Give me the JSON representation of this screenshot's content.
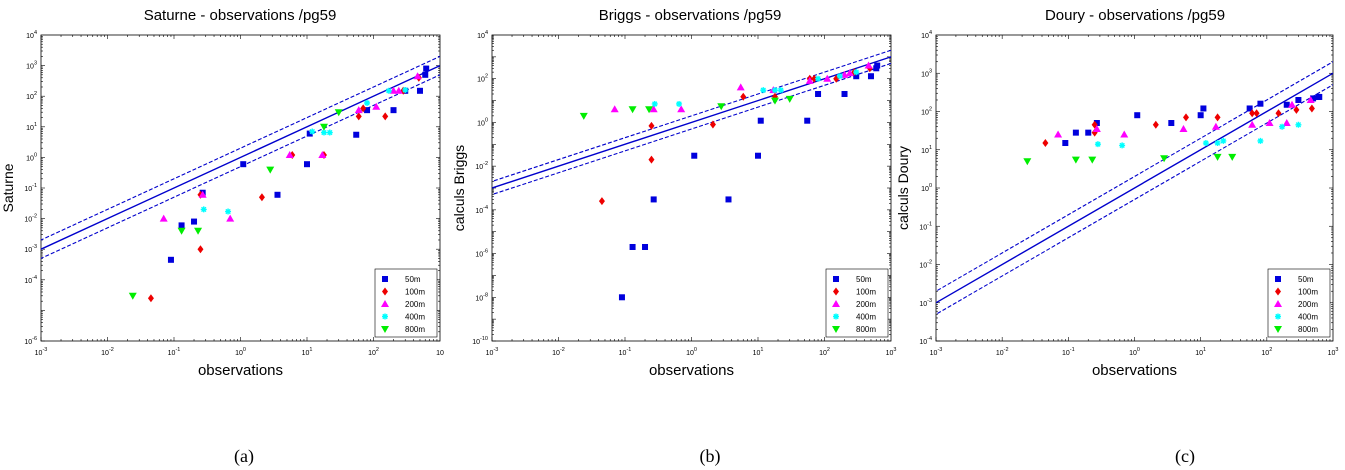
{
  "captions": [
    "(a)",
    "(b)",
    "(c)"
  ],
  "colors": {
    "50m": "#0000dd",
    "100m": "#ee0000",
    "200m": "#ff00ff",
    "400m": "#00ffff",
    "800m": "#00ee00",
    "fit_line": "#0000cc"
  },
  "chart_data": [
    {
      "type": "scatter",
      "title": "Saturne - observations /pg59",
      "xlabel": "observations",
      "ylabel": "Saturne",
      "xscale": "log",
      "yscale": "log",
      "xlim": [
        0.001,
        1000
      ],
      "ylim": [
        1e-06,
        10000
      ],
      "xticks": [
        {
          "value": 0.001,
          "label_base": "10",
          "label_exp": "-3"
        },
        {
          "value": 0.01,
          "label_base": "10",
          "label_exp": "-2"
        },
        {
          "value": 0.1,
          "label_base": "10",
          "label_exp": "-1"
        },
        {
          "value": 1,
          "label_base": "10",
          "label_exp": "0"
        },
        {
          "value": 10,
          "label_base": "10",
          "label_exp": "1"
        },
        {
          "value": 100,
          "label_base": "10",
          "label_exp": "2"
        },
        {
          "value": 1000,
          "label_base": "10",
          "label_exp": ""
        }
      ],
      "yticks": [
        {
          "value": 1e-06,
          "label_base": "10",
          "label_exp": "-6"
        },
        {
          "value": 0.0001,
          "label_base": "10",
          "label_exp": "-4"
        },
        {
          "value": 0.001,
          "label_base": "10",
          "label_exp": "-3"
        },
        {
          "value": 0.01,
          "label_base": "10",
          "label_exp": "-2"
        },
        {
          "value": 0.1,
          "label_base": "10",
          "label_exp": "-1"
        },
        {
          "value": 1,
          "label_base": "10",
          "label_exp": "0"
        },
        {
          "value": 10,
          "label_base": "10",
          "label_exp": "1"
        },
        {
          "value": 100,
          "label_base": "10",
          "label_exp": "2"
        },
        {
          "value": 1000,
          "label_base": "10",
          "label_exp": "3"
        },
        {
          "value": 10000,
          "label_base": "10",
          "label_exp": "4"
        }
      ],
      "legend_position": "bottom-right",
      "lines": [
        {
          "style": "solid",
          "factor": 1
        },
        {
          "style": "dashed",
          "factor": 2
        },
        {
          "style": "dashed",
          "factor": 0.5
        }
      ],
      "series": [
        {
          "name": "50m",
          "marker": "square",
          "points": [
            [
              0.09,
              0.00045
            ],
            [
              0.13,
              0.006
            ],
            [
              0.2,
              0.008
            ],
            [
              0.27,
              0.07
            ],
            [
              1.1,
              0.6
            ],
            [
              3.6,
              0.06
            ],
            [
              10,
              0.6
            ],
            [
              11,
              6
            ],
            [
              55,
              5.5
            ],
            [
              80,
              35
            ],
            [
              200,
              35
            ],
            [
              300,
              150
            ],
            [
              500,
              150
            ],
            [
              600,
              500
            ],
            [
              620,
              800
            ]
          ]
        },
        {
          "name": "100m",
          "marker": "diamond",
          "points": [
            [
              0.045,
              2.5e-05
            ],
            [
              0.25,
              0.001
            ],
            [
              0.25,
              0.06
            ],
            [
              2.1,
              0.05
            ],
            [
              6,
              1.2
            ],
            [
              18,
              1.2
            ],
            [
              60,
              22
            ],
            [
              70,
              40
            ],
            [
              150,
              22
            ],
            [
              280,
              150
            ],
            [
              480,
              400
            ]
          ]
        },
        {
          "name": "200m",
          "marker": "triangle-up",
          "points": [
            [
              0.07,
              0.01
            ],
            [
              0.27,
              0.06
            ],
            [
              0.7,
              0.01
            ],
            [
              5.5,
              1.2
            ],
            [
              17,
              1.2
            ],
            [
              60,
              35
            ],
            [
              110,
              45
            ],
            [
              200,
              150
            ],
            [
              240,
              150
            ],
            [
              460,
              450
            ]
          ]
        },
        {
          "name": "400m",
          "marker": "star",
          "points": [
            [
              0.28,
              0.02
            ],
            [
              0.65,
              0.017
            ],
            [
              12,
              7
            ],
            [
              18,
              6.5
            ],
            [
              22,
              6.5
            ],
            [
              80,
              60
            ],
            [
              170,
              150
            ],
            [
              300,
              160
            ]
          ]
        },
        {
          "name": "800m",
          "marker": "triangle-down",
          "points": [
            [
              0.024,
              3e-05
            ],
            [
              0.13,
              0.004
            ],
            [
              0.23,
              0.004
            ],
            [
              2.8,
              0.4
            ],
            [
              18,
              10
            ],
            [
              30,
              30
            ]
          ]
        }
      ]
    },
    {
      "type": "scatter",
      "title": "Briggs - observations /pg59",
      "xlabel": "observations",
      "ylabel": "calculs Briggs",
      "xscale": "log",
      "yscale": "log",
      "xlim": [
        0.001,
        1000
      ],
      "ylim": [
        1e-10,
        10000
      ],
      "xticks": [
        {
          "value": 0.001,
          "label_base": "10",
          "label_exp": "-3"
        },
        {
          "value": 0.01,
          "label_base": "10",
          "label_exp": "-2"
        },
        {
          "value": 0.1,
          "label_base": "10",
          "label_exp": "-1"
        },
        {
          "value": 1,
          "label_base": "10",
          "label_exp": "0"
        },
        {
          "value": 10,
          "label_base": "10",
          "label_exp": "1"
        },
        {
          "value": 100,
          "label_base": "10",
          "label_exp": "2"
        },
        {
          "value": 1000,
          "label_base": "10",
          "label_exp": "3"
        }
      ],
      "yticks": [
        {
          "value": 1e-10,
          "label_base": "10",
          "label_exp": "-10"
        },
        {
          "value": 1e-08,
          "label_base": "10",
          "label_exp": "-8"
        },
        {
          "value": 1e-06,
          "label_base": "10",
          "label_exp": "-6"
        },
        {
          "value": 0.0001,
          "label_base": "10",
          "label_exp": "-4"
        },
        {
          "value": 0.01,
          "label_base": "10",
          "label_exp": "-2"
        },
        {
          "value": 1,
          "label_base": "10",
          "label_exp": "0"
        },
        {
          "value": 100,
          "label_base": "10",
          "label_exp": "2"
        },
        {
          "value": 10000,
          "label_base": "10",
          "label_exp": "4"
        }
      ],
      "legend_position": "bottom-right",
      "lines": [
        {
          "style": "solid",
          "factor": 1
        },
        {
          "style": "dashed",
          "factor": 2
        },
        {
          "style": "dashed",
          "factor": 0.5
        }
      ],
      "series": [
        {
          "name": "50m",
          "marker": "square",
          "points": [
            [
              0.09,
              1e-08
            ],
            [
              0.13,
              2e-06
            ],
            [
              0.2,
              2e-06
            ],
            [
              0.27,
              0.0003
            ],
            [
              1.1,
              0.03
            ],
            [
              3.6,
              0.0003
            ],
            [
              10,
              0.03
            ],
            [
              11,
              1.2
            ],
            [
              55,
              1.2
            ],
            [
              80,
              20
            ],
            [
              200,
              20
            ],
            [
              300,
              130
            ],
            [
              500,
              130
            ],
            [
              600,
              300
            ],
            [
              620,
              400
            ]
          ]
        },
        {
          "name": "100m",
          "marker": "diamond",
          "points": [
            [
              0.045,
              0.00025
            ],
            [
              0.25,
              0.02
            ],
            [
              0.25,
              0.7
            ],
            [
              2.1,
              0.8
            ],
            [
              6,
              15
            ],
            [
              18,
              15
            ],
            [
              60,
              100
            ],
            [
              70,
              100
            ],
            [
              150,
              100
            ],
            [
              280,
              200
            ],
            [
              480,
              300
            ]
          ]
        },
        {
          "name": "200m",
          "marker": "triangle-up",
          "points": [
            [
              0.07,
              4
            ],
            [
              0.27,
              4
            ],
            [
              0.7,
              4
            ],
            [
              5.5,
              40
            ],
            [
              17,
              30
            ],
            [
              60,
              80
            ],
            [
              110,
              100
            ],
            [
              200,
              150
            ],
            [
              240,
              180
            ],
            [
              460,
              400
            ]
          ]
        },
        {
          "name": "400m",
          "marker": "star",
          "points": [
            [
              0.28,
              7
            ],
            [
              0.65,
              7
            ],
            [
              12,
              30
            ],
            [
              18,
              30
            ],
            [
              22,
              30
            ],
            [
              80,
              100
            ],
            [
              170,
              130
            ],
            [
              300,
              200
            ]
          ]
        },
        {
          "name": "800m",
          "marker": "triangle-down",
          "points": [
            [
              0.024,
              2
            ],
            [
              0.13,
              4
            ],
            [
              0.23,
              4
            ],
            [
              2.8,
              5.5
            ],
            [
              18,
              10
            ],
            [
              30,
              12
            ]
          ]
        }
      ]
    },
    {
      "type": "scatter",
      "title": "Doury - observations /pg59",
      "xlabel": "observations",
      "ylabel": "calculs Doury",
      "xscale": "log",
      "yscale": "log",
      "xlim": [
        0.001,
        1000
      ],
      "ylim": [
        0.0001,
        10000
      ],
      "xticks": [
        {
          "value": 0.001,
          "label_base": "10",
          "label_exp": "-3"
        },
        {
          "value": 0.01,
          "label_base": "10",
          "label_exp": "-2"
        },
        {
          "value": 0.1,
          "label_base": "10",
          "label_exp": "-1"
        },
        {
          "value": 1,
          "label_base": "10",
          "label_exp": "0"
        },
        {
          "value": 10,
          "label_base": "10",
          "label_exp": "1"
        },
        {
          "value": 100,
          "label_base": "10",
          "label_exp": "2"
        },
        {
          "value": 1000,
          "label_base": "10",
          "label_exp": "3"
        }
      ],
      "yticks": [
        {
          "value": 0.0001,
          "label_base": "10",
          "label_exp": "-4"
        },
        {
          "value": 0.001,
          "label_base": "10",
          "label_exp": "-3"
        },
        {
          "value": 0.01,
          "label_base": "10",
          "label_exp": "-2"
        },
        {
          "value": 0.1,
          "label_base": "10",
          "label_exp": "-1"
        },
        {
          "value": 1,
          "label_base": "10",
          "label_exp": "0"
        },
        {
          "value": 10,
          "label_base": "10",
          "label_exp": "1"
        },
        {
          "value": 100,
          "label_base": "10",
          "label_exp": "2"
        },
        {
          "value": 1000,
          "label_base": "10",
          "label_exp": "3"
        },
        {
          "value": 10000,
          "label_base": "10",
          "label_exp": "4"
        }
      ],
      "legend_position": "bottom-right",
      "lines": [
        {
          "style": "solid",
          "factor": 1
        },
        {
          "style": "dashed",
          "factor": 2
        },
        {
          "style": "dashed",
          "factor": 0.5
        }
      ],
      "series": [
        {
          "name": "50m",
          "marker": "square",
          "points": [
            [
              0.09,
              15
            ],
            [
              0.13,
              28
            ],
            [
              0.2,
              28
            ],
            [
              0.27,
              50
            ],
            [
              1.1,
              80
            ],
            [
              3.6,
              50
            ],
            [
              10,
              80
            ],
            [
              11,
              120
            ],
            [
              55,
              120
            ],
            [
              80,
              160
            ],
            [
              200,
              150
            ],
            [
              300,
              200
            ],
            [
              500,
              220
            ],
            [
              600,
              240
            ],
            [
              620,
              240
            ]
          ]
        },
        {
          "name": "100m",
          "marker": "diamond",
          "points": [
            [
              0.045,
              15
            ],
            [
              0.25,
              28
            ],
            [
              0.25,
              45
            ],
            [
              2.1,
              45
            ],
            [
              6,
              70
            ],
            [
              18,
              70
            ],
            [
              60,
              90
            ],
            [
              70,
              90
            ],
            [
              150,
              90
            ],
            [
              280,
              110
            ],
            [
              480,
              120
            ]
          ]
        },
        {
          "name": "200m",
          "marker": "triangle-up",
          "points": [
            [
              0.07,
              25
            ],
            [
              0.27,
              35
            ],
            [
              0.7,
              25
            ],
            [
              5.5,
              35
            ],
            [
              17,
              40
            ],
            [
              60,
              45
            ],
            [
              110,
              50
            ],
            [
              200,
              50
            ],
            [
              240,
              150
            ],
            [
              460,
              200
            ]
          ]
        },
        {
          "name": "400m",
          "marker": "star",
          "points": [
            [
              0.28,
              14
            ],
            [
              0.65,
              13
            ],
            [
              12,
              15
            ],
            [
              18,
              15
            ],
            [
              22,
              17
            ],
            [
              80,
              17
            ],
            [
              170,
              40
            ],
            [
              300,
              45
            ]
          ]
        },
        {
          "name": "800m",
          "marker": "triangle-down",
          "points": [
            [
              0.024,
              5
            ],
            [
              0.13,
              5.5
            ],
            [
              0.23,
              5.5
            ],
            [
              2.8,
              6
            ],
            [
              18,
              6.5
            ],
            [
              30,
              6.5
            ]
          ]
        }
      ]
    }
  ]
}
